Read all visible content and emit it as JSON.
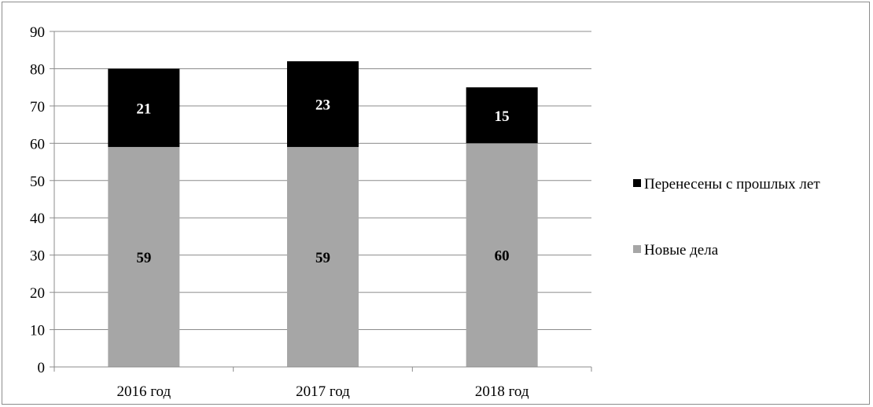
{
  "chart_data": {
    "type": "bar",
    "stacked": true,
    "categories": [
      "2016 год",
      "2017 год",
      "2018 год"
    ],
    "series": [
      {
        "name": "Новые дела",
        "values": [
          59,
          59,
          60
        ],
        "color": "#a6a6a6",
        "label_color": "#000000"
      },
      {
        "name": "Перенесены с прошлых лет",
        "values": [
          21,
          23,
          15
        ],
        "color": "#000000",
        "label_color": "#ffffff"
      }
    ],
    "ylim": [
      0,
      90
    ],
    "yticks": [
      0,
      10,
      20,
      30,
      40,
      50,
      60,
      70,
      80,
      90
    ],
    "grid": true,
    "legend_position": "right",
    "legend_order": [
      1,
      0
    ],
    "title": "",
    "xlabel": "",
    "ylabel": ""
  }
}
